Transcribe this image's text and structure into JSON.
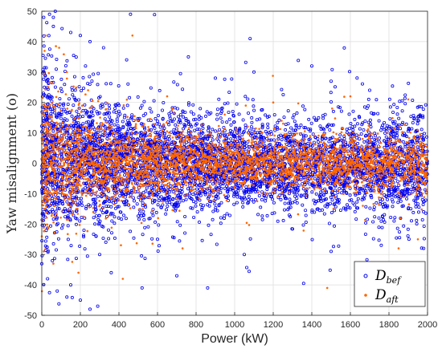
{
  "chart_data": {
    "type": "scatter",
    "title": "",
    "xlabel": "Power (kW)",
    "ylabel": "Yaw misalignment  (o)",
    "xlim": [
      0,
      2000
    ],
    "ylim": [
      -50,
      50
    ],
    "x_ticks": [
      0,
      200,
      400,
      600,
      800,
      1000,
      1200,
      1400,
      1600,
      1800,
      2000
    ],
    "y_ticks": [
      -50,
      -40,
      -30,
      -20,
      -10,
      0,
      10,
      20,
      30,
      40,
      50
    ],
    "grid": true,
    "legend_position": "bottom-right",
    "series": [
      {
        "name": "D_bef",
        "label_main": "D",
        "label_sub": "bef",
        "color": "#0000ee",
        "marker": "open-circle",
        "points": [
          [
            10,
            48
          ],
          [
            40,
            49
          ],
          [
            60,
            48
          ],
          [
            70,
            50
          ],
          [
            460,
            49
          ],
          [
            1080,
            41
          ],
          [
            60,
            45
          ],
          [
            150,
            43
          ],
          [
            200,
            42
          ],
          [
            250,
            40
          ],
          [
            320,
            38
          ],
          [
            440,
            34
          ],
          [
            760,
            35
          ],
          [
            900,
            28
          ],
          [
            1100,
            30
          ],
          [
            1400,
            32
          ],
          [
            1500,
            27
          ],
          [
            1700,
            24
          ],
          [
            30,
            -38
          ],
          [
            80,
            -42
          ],
          [
            130,
            -44
          ],
          [
            200,
            -45
          ],
          [
            250,
            -48
          ],
          [
            290,
            -47
          ],
          [
            150,
            -40
          ],
          [
            360,
            -36
          ],
          [
            520,
            -41
          ],
          [
            700,
            -37
          ],
          [
            860,
            -41
          ],
          [
            1050,
            -30
          ],
          [
            1500,
            -29
          ],
          [
            1760,
            -27
          ],
          [
            1850,
            -34
          ],
          [
            1980,
            -28
          ],
          [
            300,
            -30
          ],
          [
            600,
            -25
          ]
        ],
        "band": [
          {
            "x": 0,
            "mean": 2,
            "sd": 14
          },
          {
            "x": 200,
            "mean": 2,
            "sd": 11
          },
          {
            "x": 400,
            "mean": 1,
            "sd": 9
          },
          {
            "x": 600,
            "mean": 0,
            "sd": 8
          },
          {
            "x": 800,
            "mean": 0,
            "sd": 7.5
          },
          {
            "x": 1000,
            "mean": 0,
            "sd": 7
          },
          {
            "x": 1200,
            "mean": 0,
            "sd": 7
          },
          {
            "x": 1400,
            "mean": -1,
            "sd": 7
          },
          {
            "x": 1600,
            "mean": -1,
            "sd": 7.5
          },
          {
            "x": 1800,
            "mean": -1,
            "sd": 8
          },
          {
            "x": 2000,
            "mean": -1,
            "sd": 8.5
          }
        ]
      },
      {
        "name": "D_aft",
        "label_main": "D",
        "label_sub": "aft",
        "color": "#ff6600",
        "marker": "dot",
        "points": [
          [
            20,
            42
          ],
          [
            90,
            38
          ],
          [
            130,
            30
          ],
          [
            240,
            24
          ],
          [
            470,
            42
          ],
          [
            650,
            22
          ],
          [
            1200,
            20
          ],
          [
            1600,
            22
          ],
          [
            1900,
            21
          ],
          [
            60,
            -33
          ],
          [
            190,
            -36
          ],
          [
            420,
            -38
          ],
          [
            730,
            -28
          ],
          [
            1480,
            -41
          ],
          [
            1850,
            -28
          ],
          [
            1950,
            -25
          ]
        ],
        "band": [
          {
            "x": 0,
            "mean": 1,
            "sd": 10
          },
          {
            "x": 200,
            "mean": 1,
            "sd": 8
          },
          {
            "x": 400,
            "mean": 0.5,
            "sd": 6
          },
          {
            "x": 600,
            "mean": 0,
            "sd": 5
          },
          {
            "x": 800,
            "mean": 0,
            "sd": 4.5
          },
          {
            "x": 1000,
            "mean": 0,
            "sd": 4
          },
          {
            "x": 1200,
            "mean": 0,
            "sd": 4
          },
          {
            "x": 1400,
            "mean": 0,
            "sd": 4
          },
          {
            "x": 1600,
            "mean": 0,
            "sd": 4.2
          },
          {
            "x": 1800,
            "mean": 0,
            "sd": 4.5
          },
          {
            "x": 2000,
            "mean": 0,
            "sd": 4.8
          }
        ]
      }
    ]
  }
}
